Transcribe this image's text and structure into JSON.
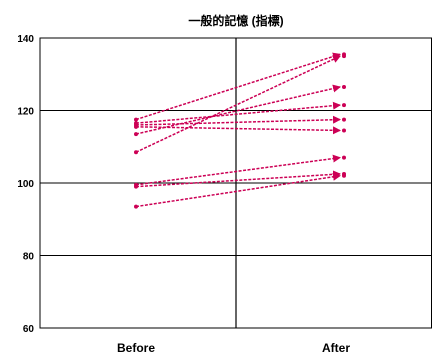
{
  "chart_data": {
    "type": "line",
    "title": "一般的記憶 (指標)",
    "categories": [
      "Before",
      "After"
    ],
    "ylim": [
      60,
      140
    ],
    "yticks": [
      60,
      80,
      100,
      120,
      140
    ],
    "grid": true,
    "series": [
      {
        "values": [
          117.5,
          135.5
        ]
      },
      {
        "values": [
          113.5,
          126.5
        ]
      },
      {
        "values": [
          116.5,
          121.5
        ]
      },
      {
        "values": [
          108.5,
          135.0
        ]
      },
      {
        "values": [
          116.0,
          117.5
        ]
      },
      {
        "values": [
          115.5,
          114.5
        ]
      },
      {
        "values": [
          99.5,
          107.0
        ]
      },
      {
        "values": [
          99.0,
          102.5
        ]
      },
      {
        "values": [
          93.5,
          102.0
        ]
      }
    ],
    "colors": {
      "series": "#cc0055",
      "grid": "#000000",
      "frame": "#000000"
    }
  }
}
